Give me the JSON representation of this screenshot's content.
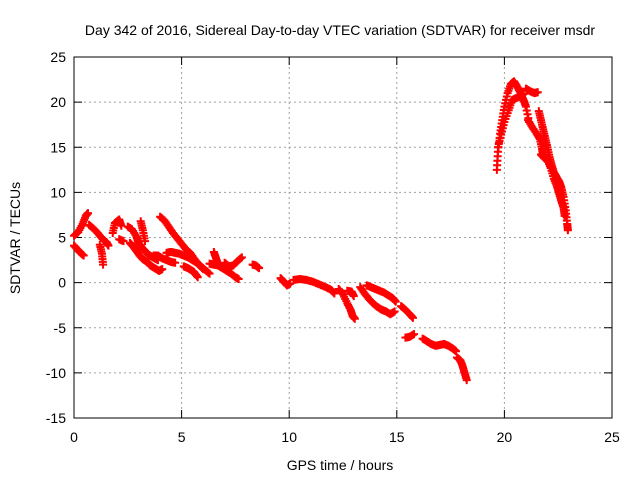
{
  "chart_data": {
    "type": "scatter",
    "title": "Day 342 of 2016, Sidereal Day-to-day VTEC variation (SDTVAR) for receiver msdr",
    "xlabel": "GPS time / hours",
    "ylabel": "SDTVAR / TECUs",
    "xlim": [
      0,
      25
    ],
    "ylim": [
      -15,
      25
    ],
    "xticks": [
      0,
      5,
      10,
      15,
      20,
      25
    ],
    "yticks": [
      -15,
      -10,
      -5,
      0,
      5,
      10,
      15,
      20,
      25
    ],
    "grid": true,
    "marker": "plus",
    "series_color": "#ff0000",
    "segments": [
      [
        [
          0.0,
          5.2
        ],
        [
          0.2,
          5.6
        ],
        [
          0.4,
          6.5
        ],
        [
          0.55,
          7.4
        ],
        [
          0.65,
          7.7
        ]
      ],
      [
        [
          0.0,
          4.1
        ],
        [
          0.15,
          3.7
        ],
        [
          0.3,
          3.3
        ],
        [
          0.45,
          3.0
        ]
      ],
      [
        [
          0.7,
          6.4
        ],
        [
          0.9,
          6.0
        ],
        [
          1.1,
          5.5
        ],
        [
          1.3,
          4.9
        ],
        [
          1.5,
          4.5
        ],
        [
          1.6,
          4.1
        ]
      ],
      [
        [
          1.2,
          4.2
        ],
        [
          1.3,
          3.2
        ],
        [
          1.35,
          2.0
        ]
      ],
      [
        [
          1.8,
          5.5
        ],
        [
          1.9,
          6.6
        ],
        [
          2.1,
          7.0
        ],
        [
          2.2,
          6.3
        ]
      ],
      [
        [
          2.1,
          4.8
        ],
        [
          2.3,
          4.6
        ]
      ],
      [
        [
          2.5,
          6.2
        ],
        [
          2.7,
          5.9
        ],
        [
          2.9,
          5.1
        ],
        [
          3.0,
          4.4
        ],
        [
          3.15,
          3.9
        ],
        [
          3.3,
          3.5
        ],
        [
          3.45,
          3.1
        ],
        [
          3.6,
          2.9
        ],
        [
          3.75,
          2.7
        ],
        [
          3.9,
          2.5
        ]
      ],
      [
        [
          2.6,
          4.4
        ],
        [
          2.75,
          4.0
        ],
        [
          2.9,
          3.5
        ],
        [
          3.05,
          3.0
        ],
        [
          3.2,
          2.6
        ],
        [
          3.4,
          2.3
        ],
        [
          3.55,
          1.9
        ],
        [
          3.75,
          1.6
        ],
        [
          3.95,
          1.3
        ],
        [
          4.1,
          1.5
        ]
      ],
      [
        [
          3.1,
          6.8
        ],
        [
          3.2,
          5.8
        ],
        [
          3.3,
          4.6
        ]
      ],
      [
        [
          4.0,
          7.3
        ],
        [
          4.2,
          6.9
        ],
        [
          4.4,
          6.2
        ],
        [
          4.6,
          5.5
        ],
        [
          4.8,
          4.9
        ],
        [
          5.0,
          4.3
        ],
        [
          5.2,
          3.7
        ],
        [
          5.4,
          3.3
        ],
        [
          5.6,
          2.6
        ],
        [
          5.8,
          2.0
        ],
        [
          6.0,
          1.5
        ]
      ],
      [
        [
          4.3,
          3.3
        ],
        [
          4.5,
          3.4
        ],
        [
          4.7,
          3.3
        ],
        [
          4.9,
          3.2
        ],
        [
          5.1,
          3.0
        ],
        [
          5.3,
          2.8
        ],
        [
          5.5,
          2.5
        ],
        [
          5.7,
          2.2
        ],
        [
          5.9,
          1.8
        ],
        [
          6.1,
          1.4
        ],
        [
          6.3,
          1.0
        ]
      ],
      [
        [
          3.7,
          3.0
        ],
        [
          3.9,
          3.0
        ],
        [
          4.1,
          2.7
        ],
        [
          4.3,
          2.5
        ],
        [
          4.5,
          2.3
        ],
        [
          4.7,
          2.2
        ]
      ],
      [
        [
          5.1,
          1.8
        ],
        [
          5.3,
          1.6
        ],
        [
          5.5,
          1.3
        ],
        [
          5.6,
          1.1
        ],
        [
          5.75,
          0.6
        ]
      ],
      [
        [
          6.3,
          2.1
        ],
        [
          6.5,
          2.0
        ],
        [
          6.7,
          1.9
        ],
        [
          6.9,
          1.6
        ],
        [
          7.1,
          1.3
        ],
        [
          7.3,
          1.0
        ],
        [
          7.5,
          0.6
        ],
        [
          7.65,
          0.4
        ]
      ],
      [
        [
          6.5,
          3.4
        ],
        [
          6.6,
          2.7
        ],
        [
          6.7,
          2.0
        ]
      ],
      [
        [
          7.0,
          2.2
        ],
        [
          7.2,
          1.8
        ],
        [
          7.4,
          1.9
        ],
        [
          7.6,
          2.4
        ],
        [
          7.8,
          2.8
        ]
      ],
      [
        [
          8.3,
          2.0
        ],
        [
          8.45,
          1.9
        ],
        [
          8.6,
          1.6
        ]
      ],
      [
        [
          9.6,
          0.5
        ],
        [
          9.75,
          0.1
        ],
        [
          9.9,
          -0.3
        ],
        [
          10.05,
          -0.1
        ]
      ],
      [
        [
          10.2,
          0.3
        ],
        [
          10.5,
          0.4
        ],
        [
          10.8,
          0.3
        ],
        [
          11.1,
          0.1
        ],
        [
          11.4,
          -0.2
        ],
        [
          11.7,
          -0.5
        ],
        [
          11.95,
          -0.8
        ],
        [
          12.1,
          -1.2
        ]
      ],
      [
        [
          12.3,
          -0.7
        ],
        [
          12.5,
          -1.3
        ],
        [
          12.7,
          -2.3
        ],
        [
          12.85,
          -3.0
        ],
        [
          12.95,
          -3.7
        ],
        [
          13.05,
          -4.0
        ]
      ],
      [
        [
          12.7,
          -0.9
        ],
        [
          12.9,
          -1.0
        ],
        [
          13.0,
          -1.5
        ]
      ],
      [
        [
          13.3,
          -0.5
        ],
        [
          13.5,
          -1.2
        ],
        [
          13.7,
          -1.8
        ],
        [
          13.9,
          -2.3
        ],
        [
          14.1,
          -2.7
        ],
        [
          14.3,
          -3.0
        ],
        [
          14.5,
          -3.2
        ],
        [
          14.7,
          -3.5
        ],
        [
          14.9,
          -3.2
        ]
      ],
      [
        [
          13.6,
          -0.3
        ],
        [
          13.8,
          -0.5
        ],
        [
          14.0,
          -0.7
        ],
        [
          14.2,
          -0.9
        ],
        [
          14.4,
          -1.1
        ],
        [
          14.6,
          -1.4
        ],
        [
          14.8,
          -1.7
        ],
        [
          14.95,
          -2.1
        ]
      ],
      [
        [
          15.2,
          -2.6
        ],
        [
          15.4,
          -3.0
        ],
        [
          15.6,
          -3.5
        ],
        [
          15.75,
          -3.9
        ]
      ],
      [
        [
          15.4,
          -6.1
        ],
        [
          15.6,
          -6.0
        ],
        [
          15.8,
          -5.7
        ]
      ],
      [
        [
          16.2,
          -6.2
        ],
        [
          16.4,
          -6.5
        ],
        [
          16.6,
          -6.8
        ],
        [
          16.8,
          -7.0
        ],
        [
          17.0,
          -6.9
        ],
        [
          17.2,
          -6.8
        ],
        [
          17.4,
          -7.0
        ],
        [
          17.6,
          -7.3
        ],
        [
          17.75,
          -7.6
        ]
      ],
      [
        [
          17.8,
          -8.3
        ],
        [
          17.95,
          -8.6
        ],
        [
          18.05,
          -9.2
        ],
        [
          18.15,
          -10.0
        ],
        [
          18.25,
          -10.8
        ]
      ],
      [
        [
          19.65,
          12.5
        ],
        [
          19.7,
          14.5
        ],
        [
          19.8,
          16.5
        ],
        [
          19.9,
          18.0
        ],
        [
          20.0,
          19.5
        ],
        [
          20.15,
          21.0
        ],
        [
          20.3,
          22.0
        ],
        [
          20.45,
          22.3
        ],
        [
          20.6,
          21.7
        ],
        [
          20.75,
          21.0
        ],
        [
          20.9,
          20.2
        ],
        [
          21.0,
          19.5
        ],
        [
          21.15,
          17.8
        ]
      ],
      [
        [
          19.7,
          15.0
        ],
        [
          19.85,
          16.4
        ],
        [
          20.0,
          17.8
        ],
        [
          20.2,
          19.1
        ],
        [
          20.35,
          20.2
        ],
        [
          20.5,
          20.4
        ],
        [
          20.7,
          20.6
        ],
        [
          20.9,
          20.9
        ]
      ],
      [
        [
          21.0,
          21.5
        ],
        [
          21.2,
          21.2
        ],
        [
          21.4,
          21.0
        ],
        [
          21.55,
          21.1
        ]
      ],
      [
        [
          21.1,
          18.0
        ],
        [
          21.3,
          17.2
        ],
        [
          21.5,
          16.5
        ],
        [
          21.65,
          15.9
        ],
        [
          21.75,
          14.8
        ],
        [
          21.8,
          14.0
        ]
      ],
      [
        [
          21.6,
          19.0
        ],
        [
          21.7,
          18.0
        ],
        [
          21.8,
          17.0
        ],
        [
          21.9,
          16.0
        ],
        [
          22.0,
          15.0
        ],
        [
          22.1,
          13.9
        ],
        [
          22.2,
          13.0
        ],
        [
          22.3,
          12.2
        ],
        [
          22.4,
          11.8
        ],
        [
          22.55,
          11.2
        ],
        [
          22.65,
          10.5
        ],
        [
          22.75,
          9.5
        ],
        [
          22.85,
          8.0
        ],
        [
          22.92,
          6.5
        ],
        [
          22.95,
          5.8
        ]
      ],
      [
        [
          21.7,
          14.2
        ],
        [
          21.85,
          13.8
        ],
        [
          22.0,
          13.6
        ],
        [
          22.15,
          12.7
        ],
        [
          22.3,
          11.5
        ],
        [
          22.45,
          10.6
        ],
        [
          22.55,
          9.8
        ],
        [
          22.65,
          9.0
        ],
        [
          22.75,
          8.3
        ],
        [
          22.8,
          7.4
        ]
      ]
    ]
  }
}
